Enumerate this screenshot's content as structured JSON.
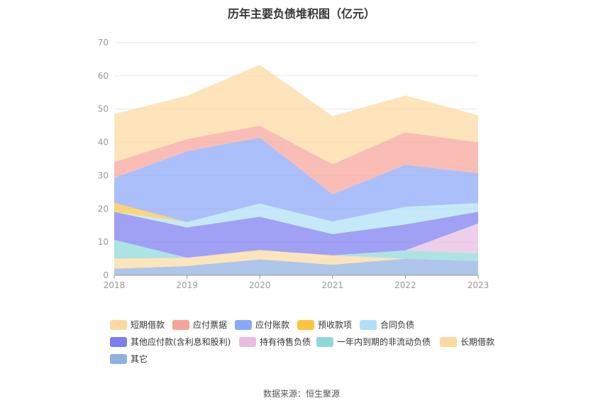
{
  "chart_data": {
    "type": "area",
    "stacked": true,
    "title": "历年主要负债堆积图（亿元）",
    "x": [
      "2018",
      "2019",
      "2020",
      "2021",
      "2022",
      "2023"
    ],
    "ylim": [
      0,
      70
    ],
    "yticks": [
      "0",
      "10",
      "20",
      "30",
      "40",
      "50",
      "60",
      "70"
    ],
    "grid": true,
    "legend_position": "bottom",
    "series": [
      {
        "name": "其它",
        "color": "#8fb0e0",
        "values": [
          2.0,
          2.8,
          4.8,
          3.2,
          5.0,
          4.3
        ]
      },
      {
        "name": "长期借款",
        "color": "#fcd9a0",
        "values": [
          3.0,
          2.5,
          2.8,
          2.8,
          0.0,
          0.0
        ]
      },
      {
        "name": "一年内到期的非流动负债",
        "color": "#8ed8d8",
        "values": [
          5.7,
          0.0,
          0.0,
          0.0,
          2.5,
          2.3
        ]
      },
      {
        "name": "持有待售负债",
        "color": "#e8bde0",
        "values": [
          0.0,
          0.0,
          0.0,
          0.0,
          0.0,
          9.0
        ]
      },
      {
        "name": "其他应付款(含利息和股利)",
        "color": "#7b7df0",
        "values": [
          8.4,
          9.1,
          10.0,
          6.4,
          7.8,
          3.5
        ]
      },
      {
        "name": "合同负债",
        "color": "#b0e0f8",
        "values": [
          0.0,
          1.6,
          4.0,
          3.8,
          5.3,
          2.6
        ]
      },
      {
        "name": "预收款项",
        "color": "#fbc63e",
        "values": [
          2.7,
          0.0,
          0.0,
          0.0,
          0.0,
          0.0
        ]
      },
      {
        "name": "应付账款",
        "color": "#8aa8f8",
        "values": [
          7.5,
          21.3,
          19.8,
          8.2,
          12.6,
          9.0
        ]
      },
      {
        "name": "应付票据",
        "color": "#f8a39a",
        "values": [
          4.8,
          3.7,
          3.6,
          9.0,
          9.8,
          9.3
        ]
      },
      {
        "name": "短期借款",
        "color": "#fcd9a0",
        "values": [
          14.4,
          13.0,
          18.3,
          14.5,
          11.1,
          8.1
        ]
      }
    ],
    "legend_order": [
      "短期借款",
      "应付票据",
      "应付账款",
      "预收款项",
      "合同负债",
      "其他应付款(含利息和股利)",
      "持有待售负债",
      "一年内到期的非流动负债",
      "长期借款",
      "其它"
    ]
  },
  "source": "数据来源：恒生聚源"
}
